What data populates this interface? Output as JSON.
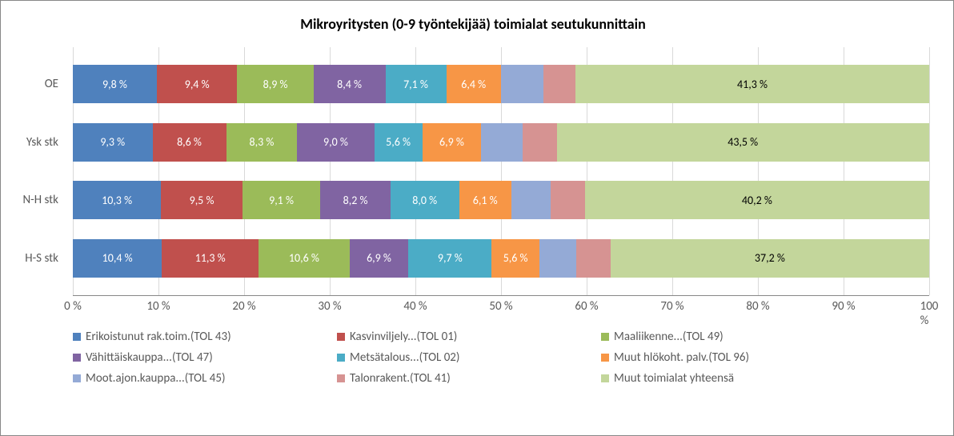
{
  "chart": {
    "type": "stacked-bar-horizontal",
    "title": "Mikroyritysten (0-9 työntekijää) toimialat seutukunnittain",
    "title_fontsize": 18,
    "title_fontweight": "bold",
    "background_color": "#ffffff",
    "border_color": "#888888",
    "grid_color": "#d9d9d9",
    "axis_text_color": "#595959",
    "label_fontsize": 15,
    "data_label_fontsize": 14,
    "xlim": [
      0,
      100
    ],
    "xtick_step": 10,
    "xticks": [
      "0 %",
      "10 %",
      "20 %",
      "30 %",
      "40 %",
      "50 %",
      "60 %",
      "70 %",
      "80 %",
      "90 %",
      "100 %"
    ],
    "categories": [
      "OE",
      "Ysk stk",
      "N-H stk",
      "H-S stk"
    ],
    "series": [
      {
        "name": "Erikoistunut rak.toim.(TOL 43)",
        "color": "#4f81bd",
        "label_color": "#ffffff"
      },
      {
        "name": "Kasvinviljely...(TOL 01)",
        "color": "#c0504d",
        "label_color": "#ffffff"
      },
      {
        "name": "Maaliikenne...(TOL 49)",
        "color": "#9bbb59",
        "label_color": "#ffffff"
      },
      {
        "name": "Vähittäiskauppa...(TOL 47)",
        "color": "#8064a2",
        "label_color": "#ffffff"
      },
      {
        "name": "Metsätalous...(TOL 02)",
        "color": "#4bacc6",
        "label_color": "#ffffff"
      },
      {
        "name": "Muut hlökoht. palv.(TOL 96)",
        "color": "#f79646",
        "label_color": "#ffffff"
      },
      {
        "name": "Moot.ajon.kauppa...(TOL 45)",
        "color": "#94aad6",
        "label_color": "#ffffff"
      },
      {
        "name": "Talonrakent.(TOL 41)",
        "color": "#d69392",
        "label_color": "#ffffff"
      },
      {
        "name": "Muut toimialat yhteensä",
        "color": "#c3d69b",
        "label_color": "#000000"
      }
    ],
    "rows": [
      {
        "label": "OE",
        "values": [
          9.8,
          9.4,
          8.9,
          8.4,
          7.1,
          6.4,
          5.0,
          3.7,
          41.3
        ],
        "show_labels": [
          "9,8 %",
          "9,4 %",
          "8,9 %",
          "8,4 %",
          "7,1 %",
          "6,4 %",
          "",
          "",
          "41,3 %"
        ]
      },
      {
        "label": "Ysk stk",
        "values": [
          9.3,
          8.6,
          8.3,
          9.0,
          5.6,
          6.9,
          4.8,
          4.0,
          43.5
        ],
        "show_labels": [
          "9,3 %",
          "8,6 %",
          "8,3 %",
          "9,0 %",
          "5,6 %",
          "6,9 %",
          "",
          "",
          "43,5 %"
        ]
      },
      {
        "label": "N-H stk",
        "values": [
          10.3,
          9.5,
          9.1,
          8.2,
          8.0,
          6.1,
          4.6,
          4.0,
          40.2
        ],
        "show_labels": [
          "10,3 %",
          "9,5 %",
          "9,1 %",
          "8,2 %",
          "8,0 %",
          "6,1 %",
          "",
          "",
          "40,2 %"
        ]
      },
      {
        "label": "H-S stk",
        "values": [
          10.4,
          11.3,
          10.6,
          6.9,
          9.7,
          5.6,
          4.3,
          4.0,
          37.2
        ],
        "show_labels": [
          "10,4 %",
          "11,3 %",
          "10,6 %",
          "6,9 %",
          "9,7 %",
          "5,6 %",
          "",
          "",
          "37,2 %"
        ]
      }
    ]
  }
}
